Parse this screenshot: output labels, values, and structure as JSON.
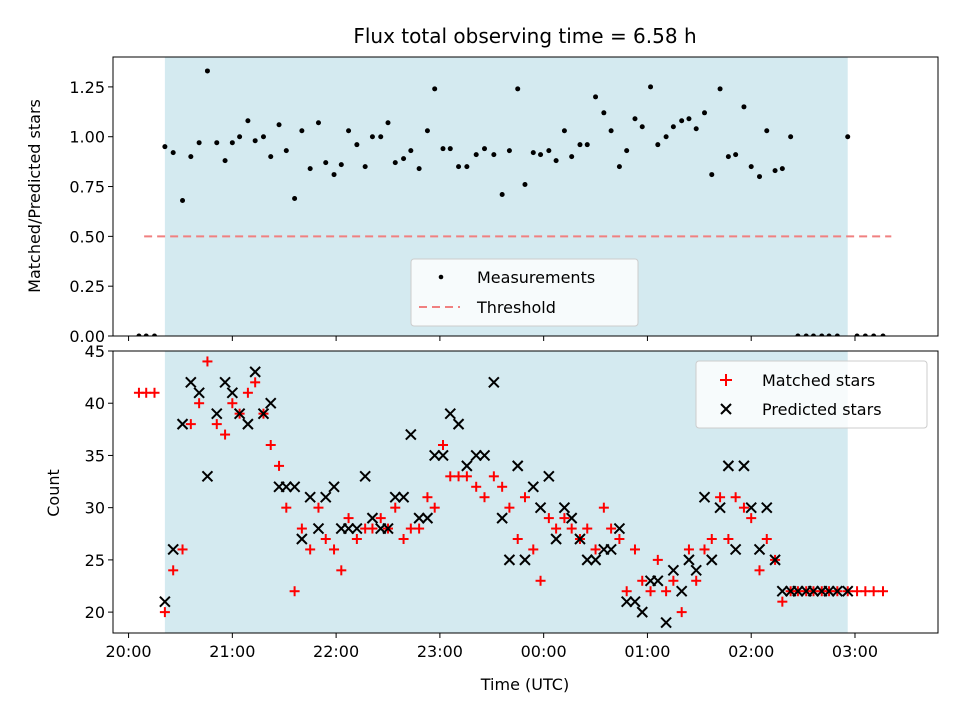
{
  "chart_data": [
    {
      "type": "scatter",
      "title": "Flux total observing time = 6.58 h",
      "xlabel": "",
      "ylabel": "Matched/Predicted stars",
      "xlim": [
        -0.15,
        7.8
      ],
      "ylim": [
        0,
        1.4
      ],
      "y_ticks": [
        0,
        0.25,
        0.5,
        0.75,
        1.0,
        1.25
      ],
      "y_tick_labels": [
        "0.00",
        "0.25",
        "0.50",
        "0.75",
        "1.00",
        "1.25"
      ],
      "grid": false,
      "legend": "lower-center",
      "observing_window": [
        0.35,
        6.93
      ],
      "colors": {
        "measurements": "#000000",
        "threshold": "#f08080",
        "band": "#d4eaf0"
      },
      "series": [
        {
          "name": "Measurements",
          "marker": "dot",
          "x": [
            0.1,
            0.17,
            0.25,
            0.35,
            0.43,
            0.52,
            0.6,
            0.68,
            0.76,
            0.85,
            0.93,
            1.0,
            1.07,
            1.15,
            1.22,
            1.3,
            1.37,
            1.45,
            1.52,
            1.6,
            1.67,
            1.75,
            1.83,
            1.9,
            1.98,
            2.05,
            2.12,
            2.2,
            2.28,
            2.35,
            2.43,
            2.5,
            2.57,
            2.65,
            2.72,
            2.8,
            2.88,
            2.95,
            3.03,
            3.1,
            3.18,
            3.26,
            3.35,
            3.43,
            3.52,
            3.6,
            3.67,
            3.75,
            3.82,
            3.9,
            3.97,
            4.05,
            4.12,
            4.2,
            4.27,
            4.35,
            4.42,
            4.5,
            4.58,
            4.65,
            4.73,
            4.8,
            4.88,
            4.95,
            5.03,
            5.1,
            5.18,
            5.25,
            5.33,
            5.4,
            5.47,
            5.55,
            5.62,
            5.7,
            5.78,
            5.85,
            5.93,
            6.0,
            6.08,
            6.15,
            6.23,
            6.3,
            6.38,
            6.45,
            6.53,
            6.6,
            6.68,
            6.75,
            6.83,
            6.93,
            7.02,
            7.1,
            7.18,
            7.27
          ],
          "y": [
            0,
            0,
            0,
            0.95,
            0.92,
            0.68,
            0.9,
            0.97,
            1.33,
            0.97,
            0.88,
            0.97,
            1.0,
            1.08,
            0.98,
            1.0,
            0.9,
            1.06,
            0.93,
            0.69,
            1.03,
            0.84,
            1.07,
            0.87,
            0.81,
            0.86,
            1.03,
            0.96,
            0.85,
            1.0,
            1.0,
            1.07,
            0.87,
            0.89,
            0.93,
            0.84,
            1.03,
            1.24,
            0.94,
            0.94,
            0.85,
            0.85,
            0.91,
            0.94,
            0.91,
            0.71,
            0.93,
            1.24,
            0.76,
            0.92,
            0.91,
            0.93,
            0.88,
            1.03,
            0.9,
            0.96,
            0.96,
            1.2,
            1.12,
            1.03,
            0.85,
            0.93,
            1.09,
            1.05,
            1.25,
            0.96,
            1.0,
            1.05,
            1.08,
            1.09,
            1.04,
            1.12,
            0.81,
            1.24,
            0.9,
            0.91,
            1.15,
            0.85,
            0.8,
            1.03,
            0.83,
            0.84,
            1.0,
            0,
            0,
            0,
            0,
            0,
            0,
            1.0,
            0,
            0,
            0,
            0
          ]
        },
        {
          "name": "Threshold",
          "style": "dashed",
          "x": [
            0.15,
            7.35
          ],
          "y": [
            0.5,
            0.5
          ]
        }
      ]
    },
    {
      "type": "scatter",
      "title": "",
      "xlabel": "Time (UTC)",
      "ylabel": "Count",
      "xlim": [
        -0.15,
        7.8
      ],
      "ylim": [
        18,
        45
      ],
      "x_ticks": [
        0,
        1,
        2,
        3,
        4,
        5,
        6,
        7
      ],
      "x_tick_labels": [
        "20:00",
        "21:00",
        "22:00",
        "23:00",
        "00:00",
        "01:00",
        "02:00",
        "03:00"
      ],
      "y_ticks": [
        20,
        25,
        30,
        35,
        40,
        45
      ],
      "y_tick_labels": [
        "20",
        "25",
        "30",
        "35",
        "40",
        "45"
      ],
      "grid": false,
      "legend": "upper-right",
      "observing_window": [
        0.35,
        6.93
      ],
      "colors": {
        "matched": "#ff0000",
        "predicted": "#000000",
        "band": "#d4eaf0"
      },
      "series": [
        {
          "name": "Matched stars",
          "marker": "plus",
          "x": [
            0.1,
            0.17,
            0.25,
            0.35,
            0.43,
            0.52,
            0.6,
            0.68,
            0.76,
            0.85,
            0.93,
            1.0,
            1.07,
            1.15,
            1.22,
            1.3,
            1.37,
            1.45,
            1.52,
            1.6,
            1.67,
            1.75,
            1.83,
            1.9,
            1.98,
            2.05,
            2.12,
            2.2,
            2.28,
            2.35,
            2.43,
            2.5,
            2.57,
            2.65,
            2.72,
            2.8,
            2.88,
            2.95,
            3.03,
            3.1,
            3.18,
            3.26,
            3.35,
            3.43,
            3.52,
            3.6,
            3.67,
            3.75,
            3.82,
            3.9,
            3.97,
            4.05,
            4.12,
            4.2,
            4.27,
            4.35,
            4.42,
            4.5,
            4.58,
            4.65,
            4.73,
            4.8,
            4.88,
            4.95,
            5.03,
            5.1,
            5.18,
            5.25,
            5.33,
            5.4,
            5.47,
            5.55,
            5.62,
            5.7,
            5.78,
            5.85,
            5.93,
            6.0,
            6.08,
            6.15,
            6.23,
            6.3,
            6.38,
            6.45,
            6.53,
            6.6,
            6.68,
            6.75,
            6.83,
            6.93,
            7.02,
            7.1,
            7.18,
            7.27
          ],
          "y": [
            41,
            41,
            41,
            20,
            24,
            26,
            38,
            40,
            44,
            38,
            37,
            40,
            39,
            41,
            42,
            39,
            36,
            34,
            30,
            22,
            28,
            26,
            30,
            27,
            26,
            24,
            29,
            27,
            28,
            28,
            29,
            28,
            30,
            27,
            28,
            28,
            31,
            30,
            36,
            33,
            33,
            33,
            32,
            31,
            33,
            32,
            30,
            27,
            31,
            26,
            23,
            29,
            28,
            29,
            28,
            27,
            28,
            26,
            30,
            28,
            27,
            22,
            26,
            23,
            22,
            25,
            22,
            23,
            20,
            26,
            23,
            26,
            27,
            31,
            27,
            31,
            30,
            29,
            24,
            27,
            25,
            21,
            22,
            22,
            22,
            22,
            22,
            22,
            22,
            22,
            22,
            22,
            22,
            22
          ]
        },
        {
          "name": "Predicted stars",
          "marker": "x",
          "x": [
            0.35,
            0.43,
            0.52,
            0.6,
            0.68,
            0.76,
            0.85,
            0.93,
            1.0,
            1.07,
            1.15,
            1.22,
            1.3,
            1.37,
            1.45,
            1.52,
            1.6,
            1.67,
            1.75,
            1.83,
            1.9,
            1.98,
            2.05,
            2.12,
            2.2,
            2.28,
            2.35,
            2.43,
            2.5,
            2.57,
            2.65,
            2.72,
            2.8,
            2.88,
            2.95,
            3.03,
            3.1,
            3.18,
            3.26,
            3.35,
            3.43,
            3.52,
            3.6,
            3.67,
            3.75,
            3.82,
            3.9,
            3.97,
            4.05,
            4.12,
            4.2,
            4.27,
            4.35,
            4.42,
            4.5,
            4.58,
            4.65,
            4.73,
            4.8,
            4.88,
            4.95,
            5.03,
            5.1,
            5.18,
            5.25,
            5.33,
            5.4,
            5.47,
            5.55,
            5.62,
            5.7,
            5.78,
            5.85,
            5.93,
            6.0,
            6.08,
            6.15,
            6.23,
            6.3,
            6.38,
            6.45,
            6.53,
            6.6,
            6.68,
            6.75,
            6.83,
            6.93
          ],
          "y": [
            21,
            26,
            38,
            42,
            41,
            33,
            39,
            42,
            41,
            39,
            38,
            43,
            39,
            40,
            32,
            32,
            32,
            27,
            31,
            28,
            31,
            32,
            28,
            28,
            28,
            33,
            29,
            28,
            28,
            31,
            31,
            37,
            29,
            29,
            35,
            35,
            39,
            38,
            34,
            35,
            35,
            42,
            29,
            25,
            34,
            25,
            32,
            30,
            33,
            27,
            30,
            29,
            27,
            25,
            25,
            26,
            26,
            28,
            21,
            21,
            20,
            23,
            23,
            19,
            24,
            22,
            25,
            24,
            31,
            25,
            30,
            34,
            26,
            34,
            30,
            26,
            30,
            25,
            22,
            22,
            22,
            22,
            22,
            22,
            22,
            22,
            22
          ]
        }
      ]
    }
  ]
}
